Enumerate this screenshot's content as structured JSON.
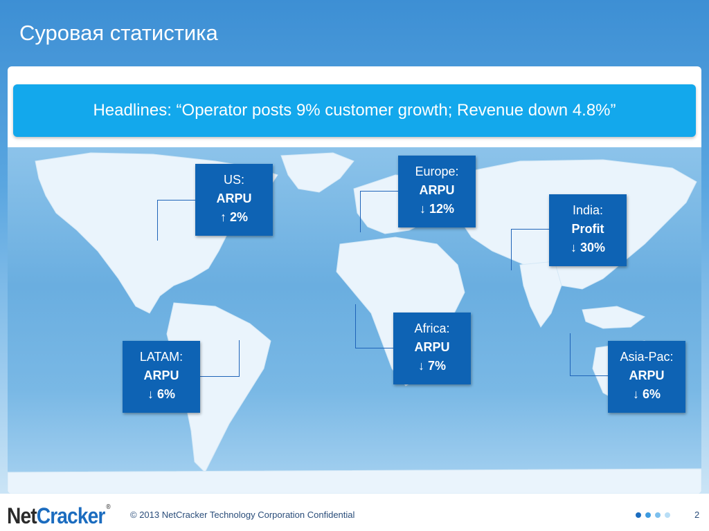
{
  "slide": {
    "title": "Суровая статистика",
    "headline": "Headlines: “Operator posts 9% customer growth; Revenue down 4.8%”"
  },
  "regions": [
    {
      "key": "us",
      "region": "US:",
      "metric": "ARPU",
      "change": "↑ 2%"
    },
    {
      "key": "europe",
      "region": "Europe:",
      "metric": "ARPU",
      "change": "↓ 12%"
    },
    {
      "key": "india",
      "region": "India:",
      "metric": "Profit",
      "change": "↓ 30%"
    },
    {
      "key": "africa",
      "region": "Africa:",
      "metric": "ARPU",
      "change": "↓ 7%"
    },
    {
      "key": "latam",
      "region": "LATAM:",
      "metric": "ARPU",
      "change": "↓ 6%"
    },
    {
      "key": "asiapac",
      "region": "Asia-Pac:",
      "metric": "ARPU",
      "change": "↓ 6%"
    }
  ],
  "footer": {
    "logo_net": "Net",
    "logo_cracker": "Cracker",
    "logo_reg": "®",
    "copyright": "© 2013 NetCracker Technology Corporation Confidential",
    "page_number": "2"
  },
  "colors": {
    "box": "#0e63b4",
    "headline_bg": "#13a8ec",
    "dots": [
      "#1b6cbf",
      "#3d9be0",
      "#7cc0ee",
      "#b8def6"
    ]
  }
}
